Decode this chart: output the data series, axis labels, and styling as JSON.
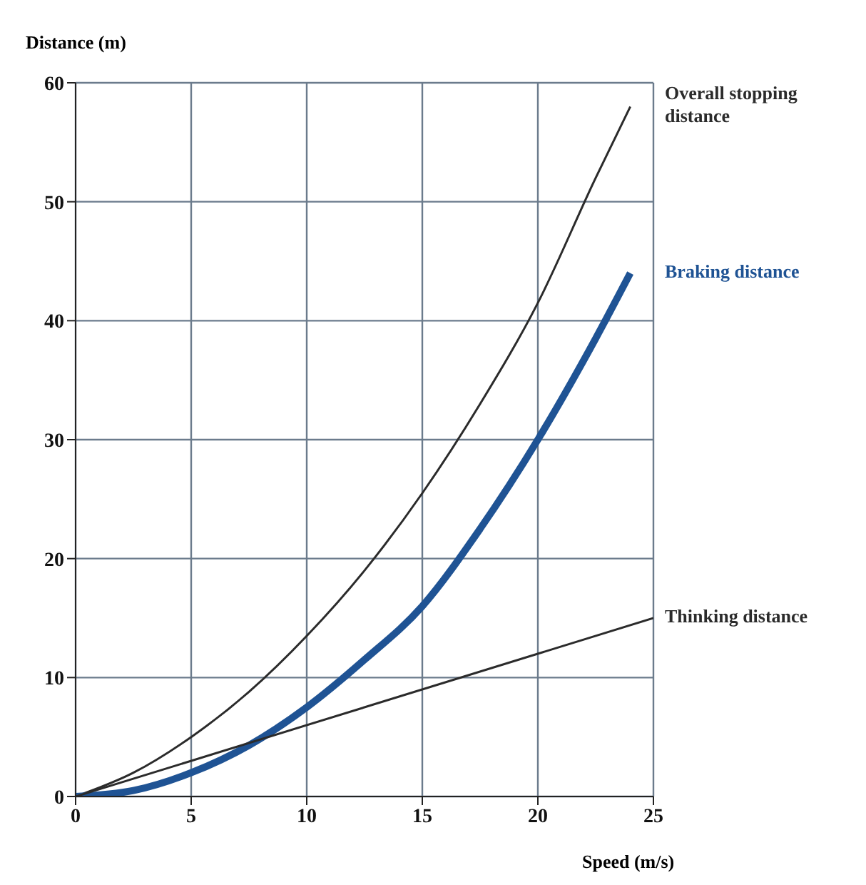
{
  "chart_data": {
    "type": "line",
    "xlabel": "Speed (m/s)",
    "ylabel": "Distance (m)",
    "xlim": [
      0,
      25
    ],
    "ylim": [
      0,
      60
    ],
    "xticks": [
      0,
      5,
      10,
      15,
      20,
      25
    ],
    "yticks": [
      0,
      10,
      20,
      30,
      40,
      50,
      60
    ],
    "grid": true,
    "marker": "none",
    "line_style": "solid",
    "series": [
      {
        "name": "Overall stopping distance",
        "color": "#2b2b2b",
        "x": [
          0,
          2.5,
          5,
          7.5,
          10,
          12.5,
          15,
          17.5,
          20,
          22.5,
          24
        ],
        "values": [
          0,
          2,
          5,
          8.8,
          13.5,
          19,
          25.5,
          33,
          41.5,
          52,
          58
        ]
      },
      {
        "name": "Braking distance",
        "color": "#1f5394",
        "x": [
          0,
          2.5,
          5,
          7.5,
          10,
          12.5,
          15,
          17.5,
          20,
          22.5,
          24
        ],
        "values": [
          0,
          0.5,
          2,
          4.3,
          7.5,
          11.5,
          16,
          22.5,
          30,
          38.5,
          44
        ]
      },
      {
        "name": "Thinking distance",
        "color": "#2b2b2b",
        "x": [
          0,
          25
        ],
        "values": [
          0,
          15
        ]
      }
    ]
  }
}
